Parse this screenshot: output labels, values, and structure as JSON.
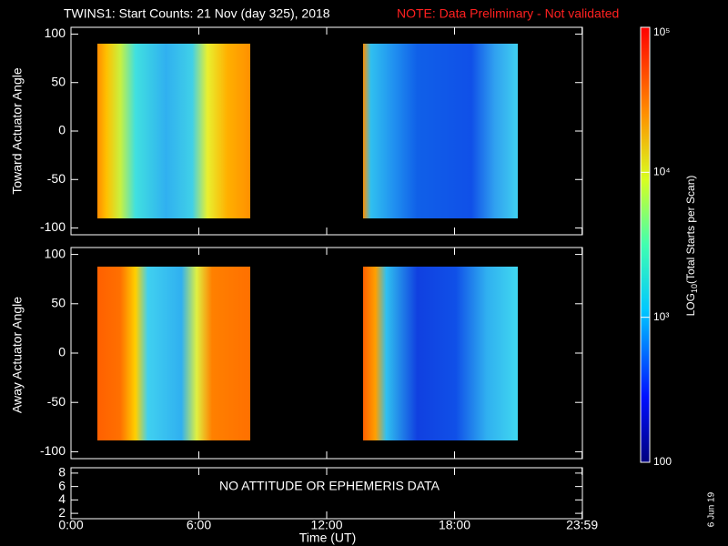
{
  "chart_data": {
    "type": "spectrogram",
    "title": "TWINS1: Start Counts: 21 Nov (day 325), 2018",
    "note": "NOTE: Data Preliminary - Not validated",
    "x_label": "Time (UT)",
    "xlim": [
      0,
      24
    ],
    "xticks": [
      {
        "value": 0,
        "label": "0:00"
      },
      {
        "value": 6,
        "label": "6:00"
      },
      {
        "value": 12,
        "label": "12:00"
      },
      {
        "value": 18,
        "label": "18:00"
      },
      {
        "value": 23.983,
        "label": "23:59"
      }
    ],
    "panels": [
      {
        "y_label": "Toward Actuator Angle",
        "ylim": [
          -107,
          107
        ],
        "yticks": [
          -100,
          -50,
          0,
          50,
          100
        ]
      },
      {
        "y_label": "Away Actuator Angle",
        "ylim": [
          -107,
          107
        ],
        "yticks": [
          -100,
          -50,
          0,
          50,
          100
        ]
      },
      {
        "ylim": [
          1.2,
          8.8
        ],
        "yticks": [
          2,
          4,
          6,
          8
        ],
        "message": "NO ATTITUDE OR EPHEMERIS DATA"
      }
    ],
    "colorbar": {
      "label_main": "LOG",
      "label_sub": "10",
      "label_rest": "(Total Starts per Scan)",
      "log_scale": true,
      "lim": [
        100,
        100000
      ],
      "ticks": [
        100,
        {
          "value": 1000,
          "label": "10³"
        },
        {
          "value": 10000,
          "label": "10⁴"
        },
        {
          "value": 100000,
          "label": "10⁵"
        }
      ]
    },
    "date_stamp": "6 Jun 19"
  }
}
